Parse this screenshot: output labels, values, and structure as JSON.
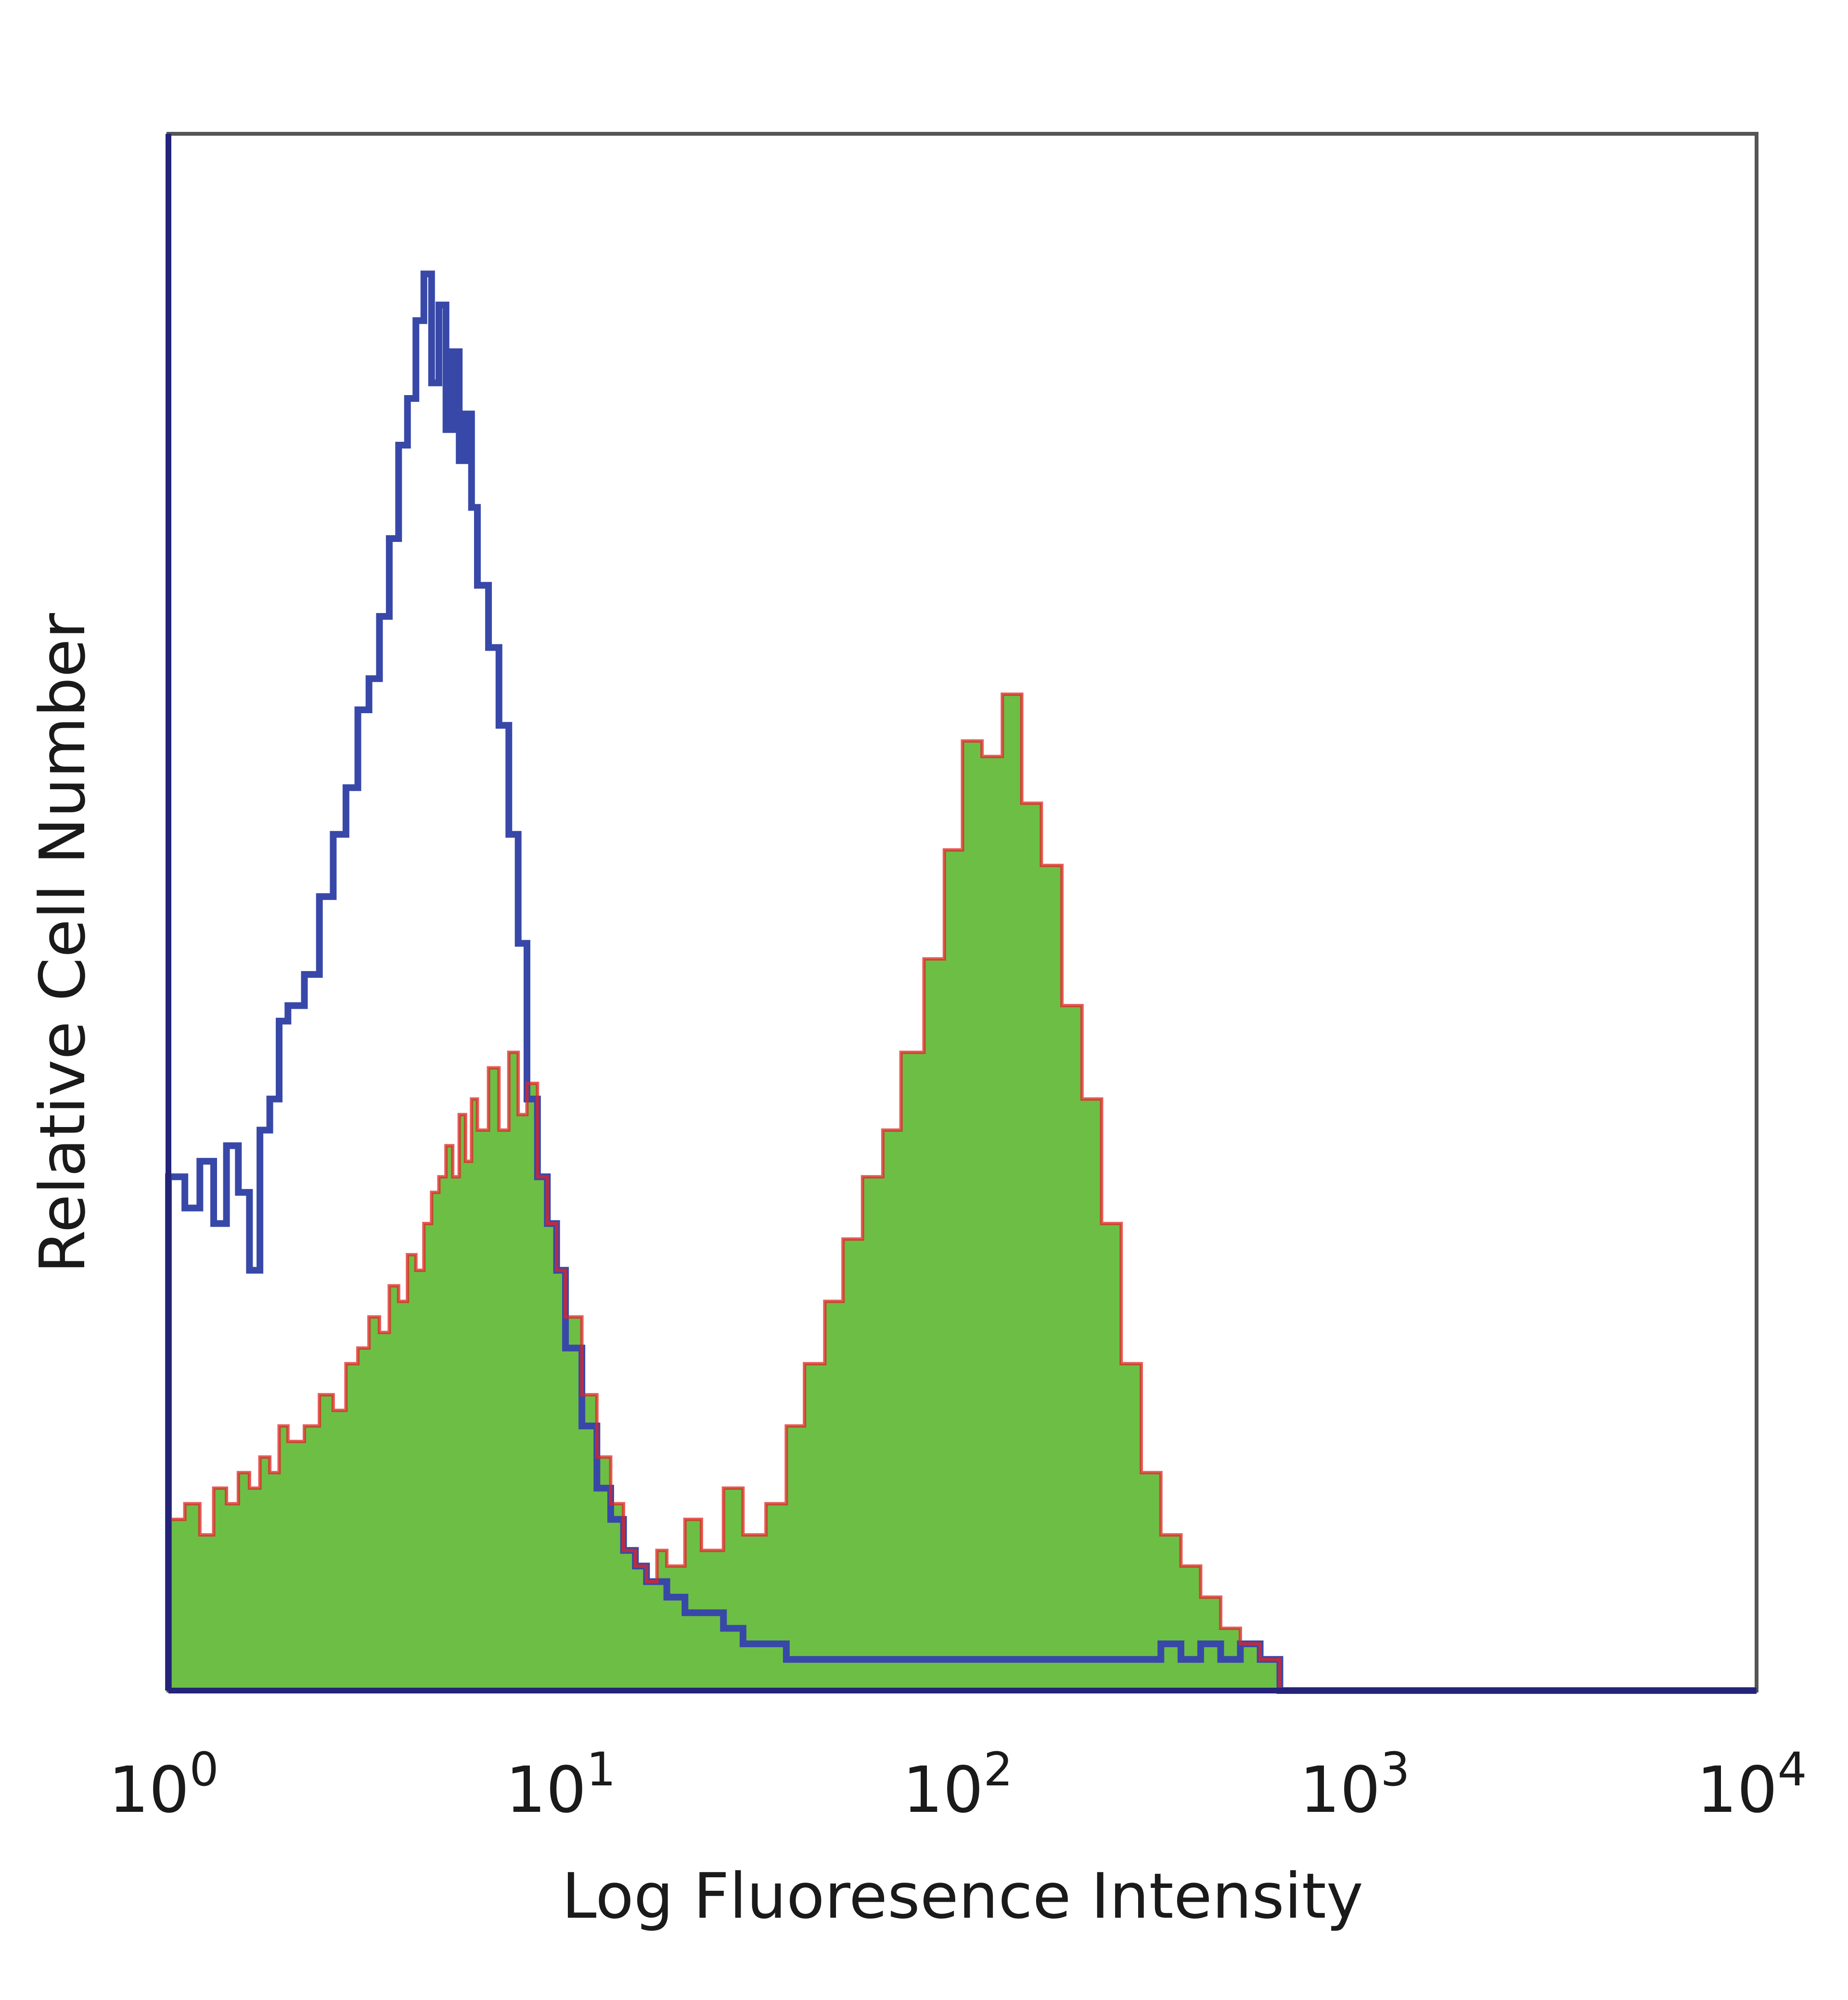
{
  "chart_data": {
    "type": "area",
    "title": "",
    "xlabel": "Log Fluoresence Intensity",
    "ylabel": "Relative Cell Number",
    "x_scale": "log",
    "xlim": [
      1,
      10000
    ],
    "ylim": [
      0,
      100
    ],
    "grid": false,
    "legend": "none",
    "x_ticks": [
      {
        "base": "10",
        "exp": "0",
        "value": 1
      },
      {
        "base": "10",
        "exp": "1",
        "value": 10
      },
      {
        "base": "10",
        "exp": "2",
        "value": 100
      },
      {
        "base": "10",
        "exp": "3",
        "value": 1000
      },
      {
        "base": "10",
        "exp": "4",
        "value": 10000
      }
    ],
    "colors": {
      "blue_outline": "#3848a8",
      "green_fill": "#6dbe45",
      "red_outline": "#e02424",
      "axis": "#23237a"
    },
    "series": [
      {
        "style": "outline",
        "color": "#3848a8",
        "x": [
          1.0,
          1.1,
          1.2,
          1.3,
          1.4,
          1.5,
          1.6,
          1.7,
          1.8,
          1.9,
          2.0,
          2.2,
          2.4,
          2.6,
          2.8,
          3.0,
          3.2,
          3.4,
          3.6,
          3.8,
          4.0,
          4.2,
          4.4,
          4.6,
          4.8,
          5.0,
          5.2,
          5.4,
          5.6,
          5.8,
          6.0,
          6.4,
          6.8,
          7.2,
          7.6,
          8.0,
          8.5,
          9.0,
          9.5,
          10.0,
          11.0,
          12.0,
          13.0,
          14.0,
          15.0,
          16.0,
          17.0,
          18.0,
          20.0,
          22.0,
          25.0,
          28.0,
          32.0,
          36.0,
          40.0,
          45.0,
          50.0,
          56.0,
          63.0,
          70.0,
          80.0,
          90.0,
          100.0,
          112.0,
          126.0,
          141.0,
          158.0,
          178.0,
          200.0,
          224.0,
          251.0,
          282.0,
          316.0,
          355.0,
          398.0,
          447.0,
          501.0,
          562.0,
          600.0,
          630.0,
          700.0,
          1000.0,
          10000.0
        ],
        "values": [
          33,
          31,
          34,
          30,
          35,
          32,
          27,
          36,
          38,
          43,
          44,
          46,
          51,
          55,
          58,
          63,
          65,
          69,
          74,
          80,
          83,
          88,
          91,
          84,
          89,
          81,
          86,
          79,
          82,
          76,
          71,
          67,
          62,
          55,
          48,
          38,
          33,
          30,
          27,
          22,
          17,
          13,
          11,
          9,
          8,
          7,
          7,
          6,
          5,
          5,
          4,
          3,
          3,
          2,
          2,
          2,
          2,
          2,
          2,
          2,
          2,
          2,
          2,
          2,
          2,
          2,
          2,
          2,
          2,
          2,
          2,
          2,
          3,
          2,
          3,
          2,
          3,
          2,
          2,
          0,
          0,
          0,
          0
        ]
      },
      {
        "style": "filled",
        "color": "#6dbe45",
        "edge": "#e02424",
        "x": [
          1.0,
          1.1,
          1.2,
          1.3,
          1.4,
          1.5,
          1.6,
          1.7,
          1.8,
          1.9,
          2.0,
          2.2,
          2.4,
          2.6,
          2.8,
          3.0,
          3.2,
          3.4,
          3.6,
          3.8,
          4.0,
          4.2,
          4.4,
          4.6,
          4.8,
          5.0,
          5.2,
          5.4,
          5.6,
          5.8,
          6.0,
          6.4,
          6.8,
          7.2,
          7.6,
          8.0,
          8.5,
          9.0,
          9.5,
          10.0,
          11.0,
          12.0,
          13.0,
          14.0,
          15.0,
          16.0,
          17.0,
          18.0,
          20.0,
          22.0,
          25.0,
          28.0,
          32.0,
          36.0,
          40.0,
          45.0,
          50.0,
          56.0,
          63.0,
          70.0,
          80.0,
          90.0,
          100.0,
          112.0,
          126.0,
          141.0,
          158.0,
          178.0,
          200.0,
          224.0,
          251.0,
          282.0,
          316.0,
          355.0,
          398.0,
          447.0,
          501.0,
          562.0,
          600.0,
          630.0,
          700.0,
          1000.0,
          10000.0
        ],
        "values": [
          11,
          12,
          10,
          13,
          12,
          14,
          13,
          15,
          14,
          17,
          16,
          17,
          19,
          18,
          21,
          22,
          24,
          23,
          26,
          25,
          28,
          27,
          30,
          32,
          33,
          35,
          33,
          37,
          34,
          38,
          36,
          40,
          36,
          41,
          37,
          39,
          33,
          30,
          27,
          24,
          19,
          15,
          12,
          9,
          8,
          7,
          9,
          8,
          11,
          9,
          13,
          10,
          12,
          17,
          21,
          25,
          29,
          33,
          36,
          41,
          47,
          54,
          61,
          60,
          64,
          57,
          53,
          44,
          38,
          30,
          21,
          14,
          10,
          8,
          6,
          4,
          3,
          2,
          2,
          0,
          0,
          0,
          0
        ]
      }
    ]
  }
}
